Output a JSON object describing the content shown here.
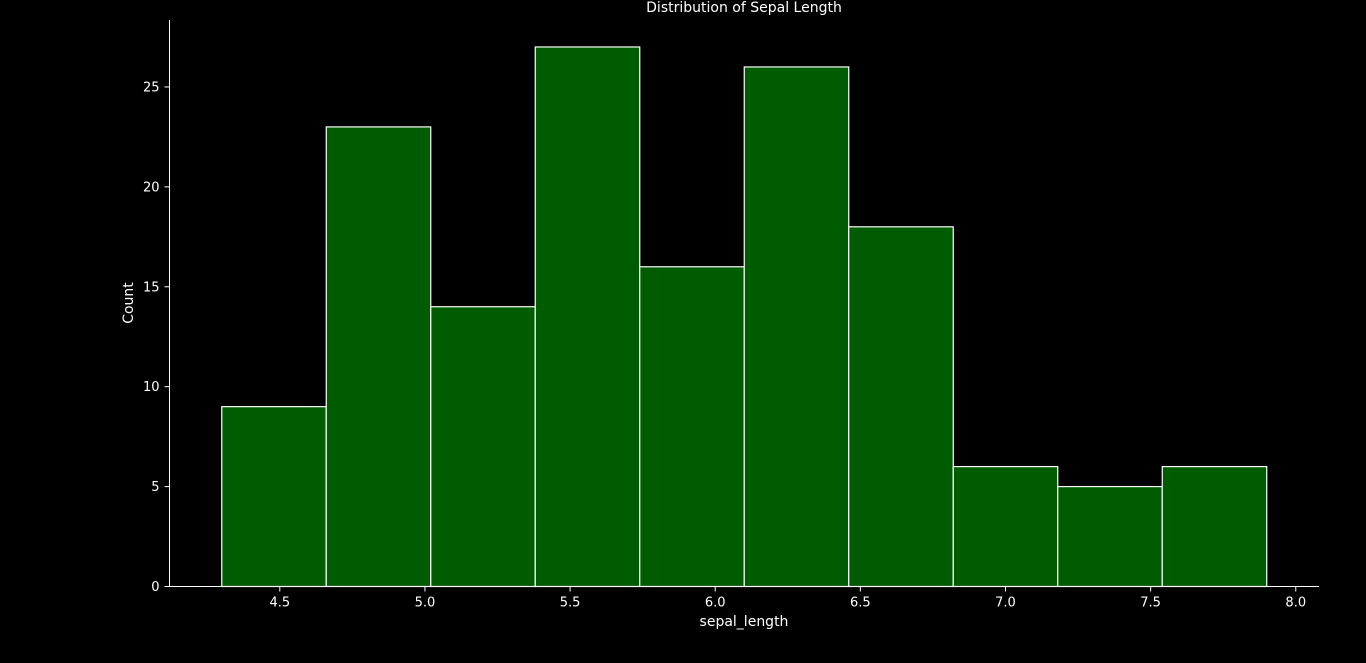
{
  "chart_data": {
    "type": "bar",
    "title": "Distribution of Sepal Length",
    "xlabel": "sepal_length",
    "ylabel": "Count",
    "bin_edges": [
      4.3,
      4.66,
      5.02,
      5.38,
      5.74,
      6.1,
      6.46,
      6.82,
      7.18,
      7.54,
      7.9
    ],
    "values": [
      9,
      23,
      14,
      27,
      16,
      26,
      18,
      6,
      5,
      6
    ],
    "xlim": [
      4.12,
      8.08
    ],
    "ylim": [
      0,
      28.35
    ],
    "xticks": [
      4.5,
      5.0,
      5.5,
      6.0,
      6.5,
      7.0,
      7.5,
      8.0
    ],
    "xtick_labels": [
      "4.5",
      "5.0",
      "5.5",
      "6.0",
      "6.5",
      "7.0",
      "7.5",
      "8.0"
    ],
    "yticks": [
      0,
      5,
      10,
      15,
      20,
      25
    ],
    "ytick_labels": [
      "0",
      "5",
      "10",
      "15",
      "20",
      "25"
    ],
    "grid": false,
    "bar_color": "#005c00",
    "edge_color": "#ffffff",
    "background": "#000000",
    "text_color": "#ffffff"
  }
}
